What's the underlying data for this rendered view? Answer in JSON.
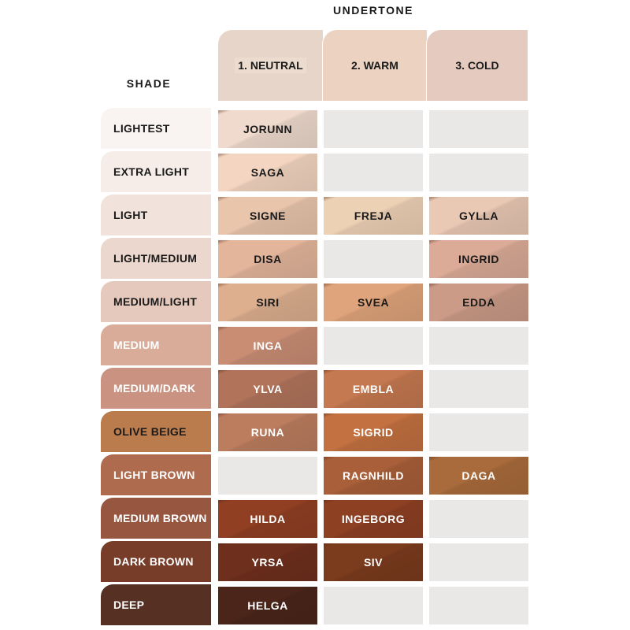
{
  "title": "UNDERTONE",
  "shade_header": "SHADE",
  "undertones": [
    {
      "label": "1. NEUTRAL",
      "color": "#e8d5c9"
    },
    {
      "label": "2. WARM",
      "color": "#ecd3c1"
    },
    {
      "label": "3. COLD",
      "color": "#e5cbbf"
    }
  ],
  "empty_color": "#e9e8e6",
  "rows": [
    {
      "shade": "LIGHTEST",
      "color": "#f9f4f2",
      "light_text": false,
      "cells": [
        {
          "name": "JORUNN",
          "color": "#efdacd"
        },
        null,
        null
      ]
    },
    {
      "shade": "EXTRA LIGHT",
      "color": "#f6ede9",
      "light_text": false,
      "cells": [
        {
          "name": "SAGA",
          "color": "#f3d5c1"
        },
        null,
        null
      ]
    },
    {
      "shade": "LIGHT",
      "color": "#f1e2dc",
      "light_text": false,
      "cells": [
        {
          "name": "SIGNE",
          "color": "#e9c5ac"
        },
        {
          "name": "FREJA",
          "color": "#edd1b5"
        },
        {
          "name": "GYLLA",
          "color": "#e9c8b4"
        }
      ]
    },
    {
      "shade": "LIGHT/MEDIUM",
      "color": "#ecd7ce",
      "light_text": false,
      "cells": [
        {
          "name": "DISA",
          "color": "#e3b59b"
        },
        null,
        {
          "name": "INGRID",
          "color": "#dbab97"
        }
      ]
    },
    {
      "shade": "MEDIUM/LIGHT",
      "color": "#e5c9bc",
      "light_text": false,
      "cells": [
        {
          "name": "SIRI",
          "color": "#ddaf8f"
        },
        {
          "name": "SVEA",
          "color": "#dfa47b"
        },
        {
          "name": "EDDA",
          "color": "#cb9b87"
        }
      ]
    },
    {
      "shade": "MEDIUM",
      "color": "#d8ac99",
      "light_text": true,
      "cells": [
        {
          "name": "INGA",
          "color": "#c98d74"
        },
        null,
        null
      ]
    },
    {
      "shade": "MEDIUM/DARK",
      "color": "#ca9381",
      "light_text": true,
      "cells": [
        {
          "name": "YLVA",
          "color": "#b1745b"
        },
        {
          "name": "EMBLA",
          "color": "#c57950"
        },
        null
      ]
    },
    {
      "shade": "OLIVE BEIGE",
      "color": "#ba7b4d",
      "light_text": false,
      "cells": [
        {
          "name": "RUNA",
          "color": "#bc7d5f"
        },
        {
          "name": "SIGRID",
          "color": "#c37140"
        },
        null
      ]
    },
    {
      "shade": "LIGHT BROWN",
      "color": "#ae6b4d",
      "light_text": true,
      "cells": [
        null,
        {
          "name": "RAGNHILD",
          "color": "#a95f39"
        },
        {
          "name": "DAGA",
          "color": "#a96b3b"
        }
      ]
    },
    {
      "shade": "MEDIUM BROWN",
      "color": "#975640",
      "light_text": true,
      "cells": [
        {
          "name": "HILDA",
          "color": "#903f23"
        },
        {
          "name": "INGEBORG",
          "color": "#8e4023"
        },
        null
      ]
    },
    {
      "shade": "DARK BROWN",
      "color": "#773d29",
      "light_text": true,
      "cells": [
        {
          "name": "YRSA",
          "color": "#6f2f1d"
        },
        {
          "name": "SIV",
          "color": "#7b3b1d"
        },
        null
      ]
    },
    {
      "shade": "DEEP",
      "color": "#563123",
      "light_text": true,
      "cells": [
        {
          "name": "HELGA",
          "color": "#4b2519"
        },
        null,
        null
      ]
    }
  ]
}
